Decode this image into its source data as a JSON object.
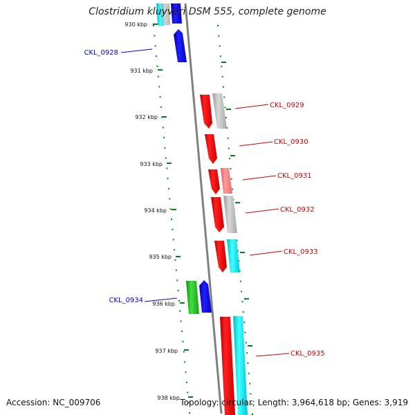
{
  "title": "Clostridium kluyveri DSM 555, complete genome",
  "accession": "Accession: NC_009706",
  "stats": "Topology: circular; Length: 3,964,618 bp; Genes: 3,919",
  "colors": {
    "forward": "#ff0000",
    "reverse": "#0000ff",
    "backbone": "#808080",
    "ticks": "#00801a",
    "label_forward": "#cc0000",
    "label_reverse": "#0000cc"
  },
  "scale": {
    "unit": "kbp",
    "ticks": [
      "930 kbp",
      "931 kbp",
      "932 kbp",
      "933 kbp",
      "934 kbp",
      "935 kbp",
      "936 kbp",
      "937 kbp",
      "938 kbp"
    ]
  },
  "genes": [
    {
      "label": "CKL_0928",
      "strand": "reverse"
    },
    {
      "label": "CKL_0929",
      "strand": "forward"
    },
    {
      "label": "CKL_0930",
      "strand": "forward"
    },
    {
      "label": "CKL_0931",
      "strand": "forward"
    },
    {
      "label": "CKL_0932",
      "strand": "forward"
    },
    {
      "label": "CKL_0933",
      "strand": "forward"
    },
    {
      "label": "CKL_0934",
      "strand": "reverse"
    },
    {
      "label": "CKL_0935",
      "strand": "forward"
    }
  ]
}
